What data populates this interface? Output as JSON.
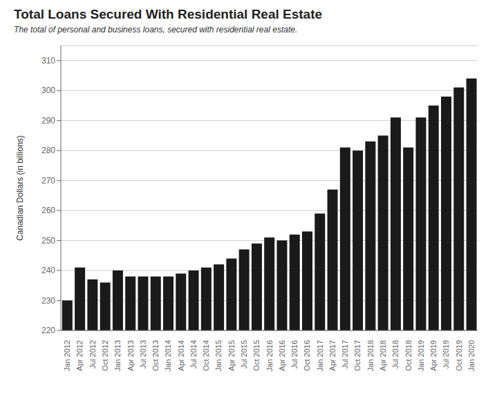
{
  "chart_data": {
    "type": "bar",
    "title": "Total Loans Secured With Residential Real Estate",
    "subtitle": "The total of personal and business loans, secured with residential real estate.",
    "ylabel": "Canadian Dollars (in billions)",
    "categories": [
      "Jan 2012",
      "Apr 2012",
      "Jul 2012",
      "Oct 2012",
      "Jan 2013",
      "Apr 2013",
      "Jul 2013",
      "Oct 2013",
      "Jan 2014",
      "Apr 2014",
      "Jul 2014",
      "Oct 2014",
      "Jan 2015",
      "Apr 2015",
      "Jul 2015",
      "Oct 2015",
      "Jan 2016",
      "Apr 2016",
      "Jul 2016",
      "Oct 2016",
      "Jan 2017",
      "Apr 2017",
      "Jul 2017",
      "Oct 2017",
      "Jan 2018",
      "Apr 2018",
      "Jul 2018",
      "Oct 2018",
      "Jan 2019",
      "Apr 2019",
      "Jul 2019",
      "Oct 2019",
      "Jan 2020"
    ],
    "values": [
      230,
      241,
      237,
      236,
      240,
      238,
      238,
      238,
      238,
      239,
      240,
      241,
      242,
      244,
      247,
      249,
      251,
      250,
      252,
      253,
      259,
      267,
      281,
      280,
      283,
      285,
      291,
      281,
      291,
      295,
      298,
      301,
      304
    ],
    "color": "#1a1a1a",
    "ylim": [
      220,
      315
    ],
    "yticks": [
      220,
      230,
      240,
      250,
      260,
      270,
      280,
      290,
      300,
      310
    ],
    "grid": true
  }
}
